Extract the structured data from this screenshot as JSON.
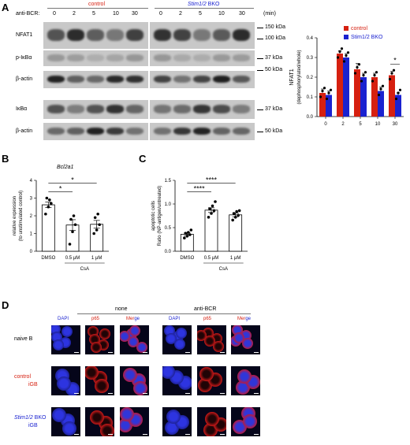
{
  "panel_a": {
    "label": "A",
    "stim_label": "anti-BCR:",
    "group_control": "control",
    "group_bko_gene": "Stim1/2",
    "group_bko_rest": " BKO",
    "timepoints": [
      "0",
      "2",
      "5",
      "10",
      "30",
      "0",
      "2",
      "5",
      "10",
      "30"
    ],
    "time_unit": "(min)",
    "rows": [
      {
        "name": "NFAT1",
        "markers": [
          "150 kDa",
          "100 kDa"
        ]
      },
      {
        "name": "p-IκBα",
        "markers": [
          "37 kDa"
        ]
      },
      {
        "name": "β-actin",
        "markers": [
          "50 kDa"
        ]
      },
      {
        "name": "IκBα",
        "markers": [
          "37 kDa"
        ]
      },
      {
        "name": "β-actin",
        "markers": [
          "50 kDa"
        ]
      }
    ]
  },
  "panel_b": {
    "label": "B",
    "gene": "Bcl2a1",
    "ylabel": "relative expression",
    "ylabel2": "(to unstimulated control)",
    "xgroup": "CsA",
    "sig": [
      "*",
      "*"
    ]
  },
  "panel_c": {
    "label": "C",
    "ylabel": "apoptotic cells",
    "ylabel2": "Ratio (NP-antigen/untreated)",
    "xgroup": "CsA",
    "sig": [
      "****",
      "****"
    ]
  },
  "panel_d": {
    "label": "D",
    "cond_none": "none",
    "cond_bcr": "anti-BCR",
    "channels": [
      "DAPI",
      "p65",
      "Merge",
      "DAPI",
      "p65",
      "Merge"
    ],
    "rows": [
      {
        "l1": "naive B",
        "l2": "",
        "l1_color": "#000",
        "l2_color": "#000"
      },
      {
        "l1": "control",
        "l2": "iGB",
        "l1_color": "#d62010",
        "l2_color": "#d62010"
      },
      {
        "l1": "Stim1/2 BKO",
        "l2": "iGB",
        "l1_color": "#1a22d0",
        "l2_color": "#1a22d0"
      }
    ]
  },
  "chart_data": [
    {
      "type": "bar",
      "ylabel": "NFAT1",
      "ylabel2": "(dephosphorylated/whole)",
      "categories": [
        "0",
        "2",
        "5",
        "10",
        "30"
      ],
      "ylim": [
        0,
        0.4
      ],
      "yticks": [
        "0.0",
        "0.1",
        "0.2",
        "0.3",
        "0.4"
      ],
      "legend": "top-right",
      "series": [
        {
          "name": "control",
          "color": "#d62010",
          "values": [
            0.12,
            0.32,
            0.24,
            0.2,
            0.21
          ],
          "errors": [
            0.02,
            0.015,
            0.03,
            0.02,
            0.02
          ]
        },
        {
          "name": "Stim1/2 BKO",
          "color": "#1a22d0",
          "values": [
            0.11,
            0.3,
            0.2,
            0.13,
            0.11
          ],
          "errors": [
            0.02,
            0.02,
            0.02,
            0.02,
            0.01
          ]
        }
      ],
      "sig": [
        {
          "category": "30",
          "text": "*"
        }
      ]
    },
    {
      "type": "bar",
      "categories": [
        "DMSO",
        "0.5 μM",
        "1 μM"
      ],
      "values": [
        2.62,
        1.48,
        1.52
      ],
      "errors": [
        0.15,
        0.3,
        0.22
      ],
      "points": [
        [
          2.1,
          2.5,
          2.7,
          3.0,
          2.9
        ],
        [
          0.4,
          1.1,
          1.5,
          1.8,
          2.0
        ],
        [
          1.0,
          1.2,
          1.5,
          1.9,
          2.1
        ]
      ],
      "ylim": [
        0,
        4
      ],
      "yticks": [
        "0",
        "1",
        "2",
        "3",
        "4"
      ]
    },
    {
      "type": "bar",
      "categories": [
        "DMSO",
        "0.5 μM",
        "1 μM"
      ],
      "values": [
        0.36,
        0.87,
        0.77
      ],
      "errors": [
        0.03,
        0.05,
        0.04
      ],
      "points": [
        [
          0.28,
          0.32,
          0.35,
          0.38,
          0.4,
          0.45
        ],
        [
          0.72,
          0.8,
          0.86,
          0.9,
          0.96,
          1.05
        ],
        [
          0.66,
          0.72,
          0.76,
          0.8,
          0.84,
          0.86
        ]
      ],
      "ylim": [
        0,
        1.5
      ],
      "yticks": [
        "0.0",
        "0.5",
        "1.0",
        "1.5"
      ]
    }
  ]
}
